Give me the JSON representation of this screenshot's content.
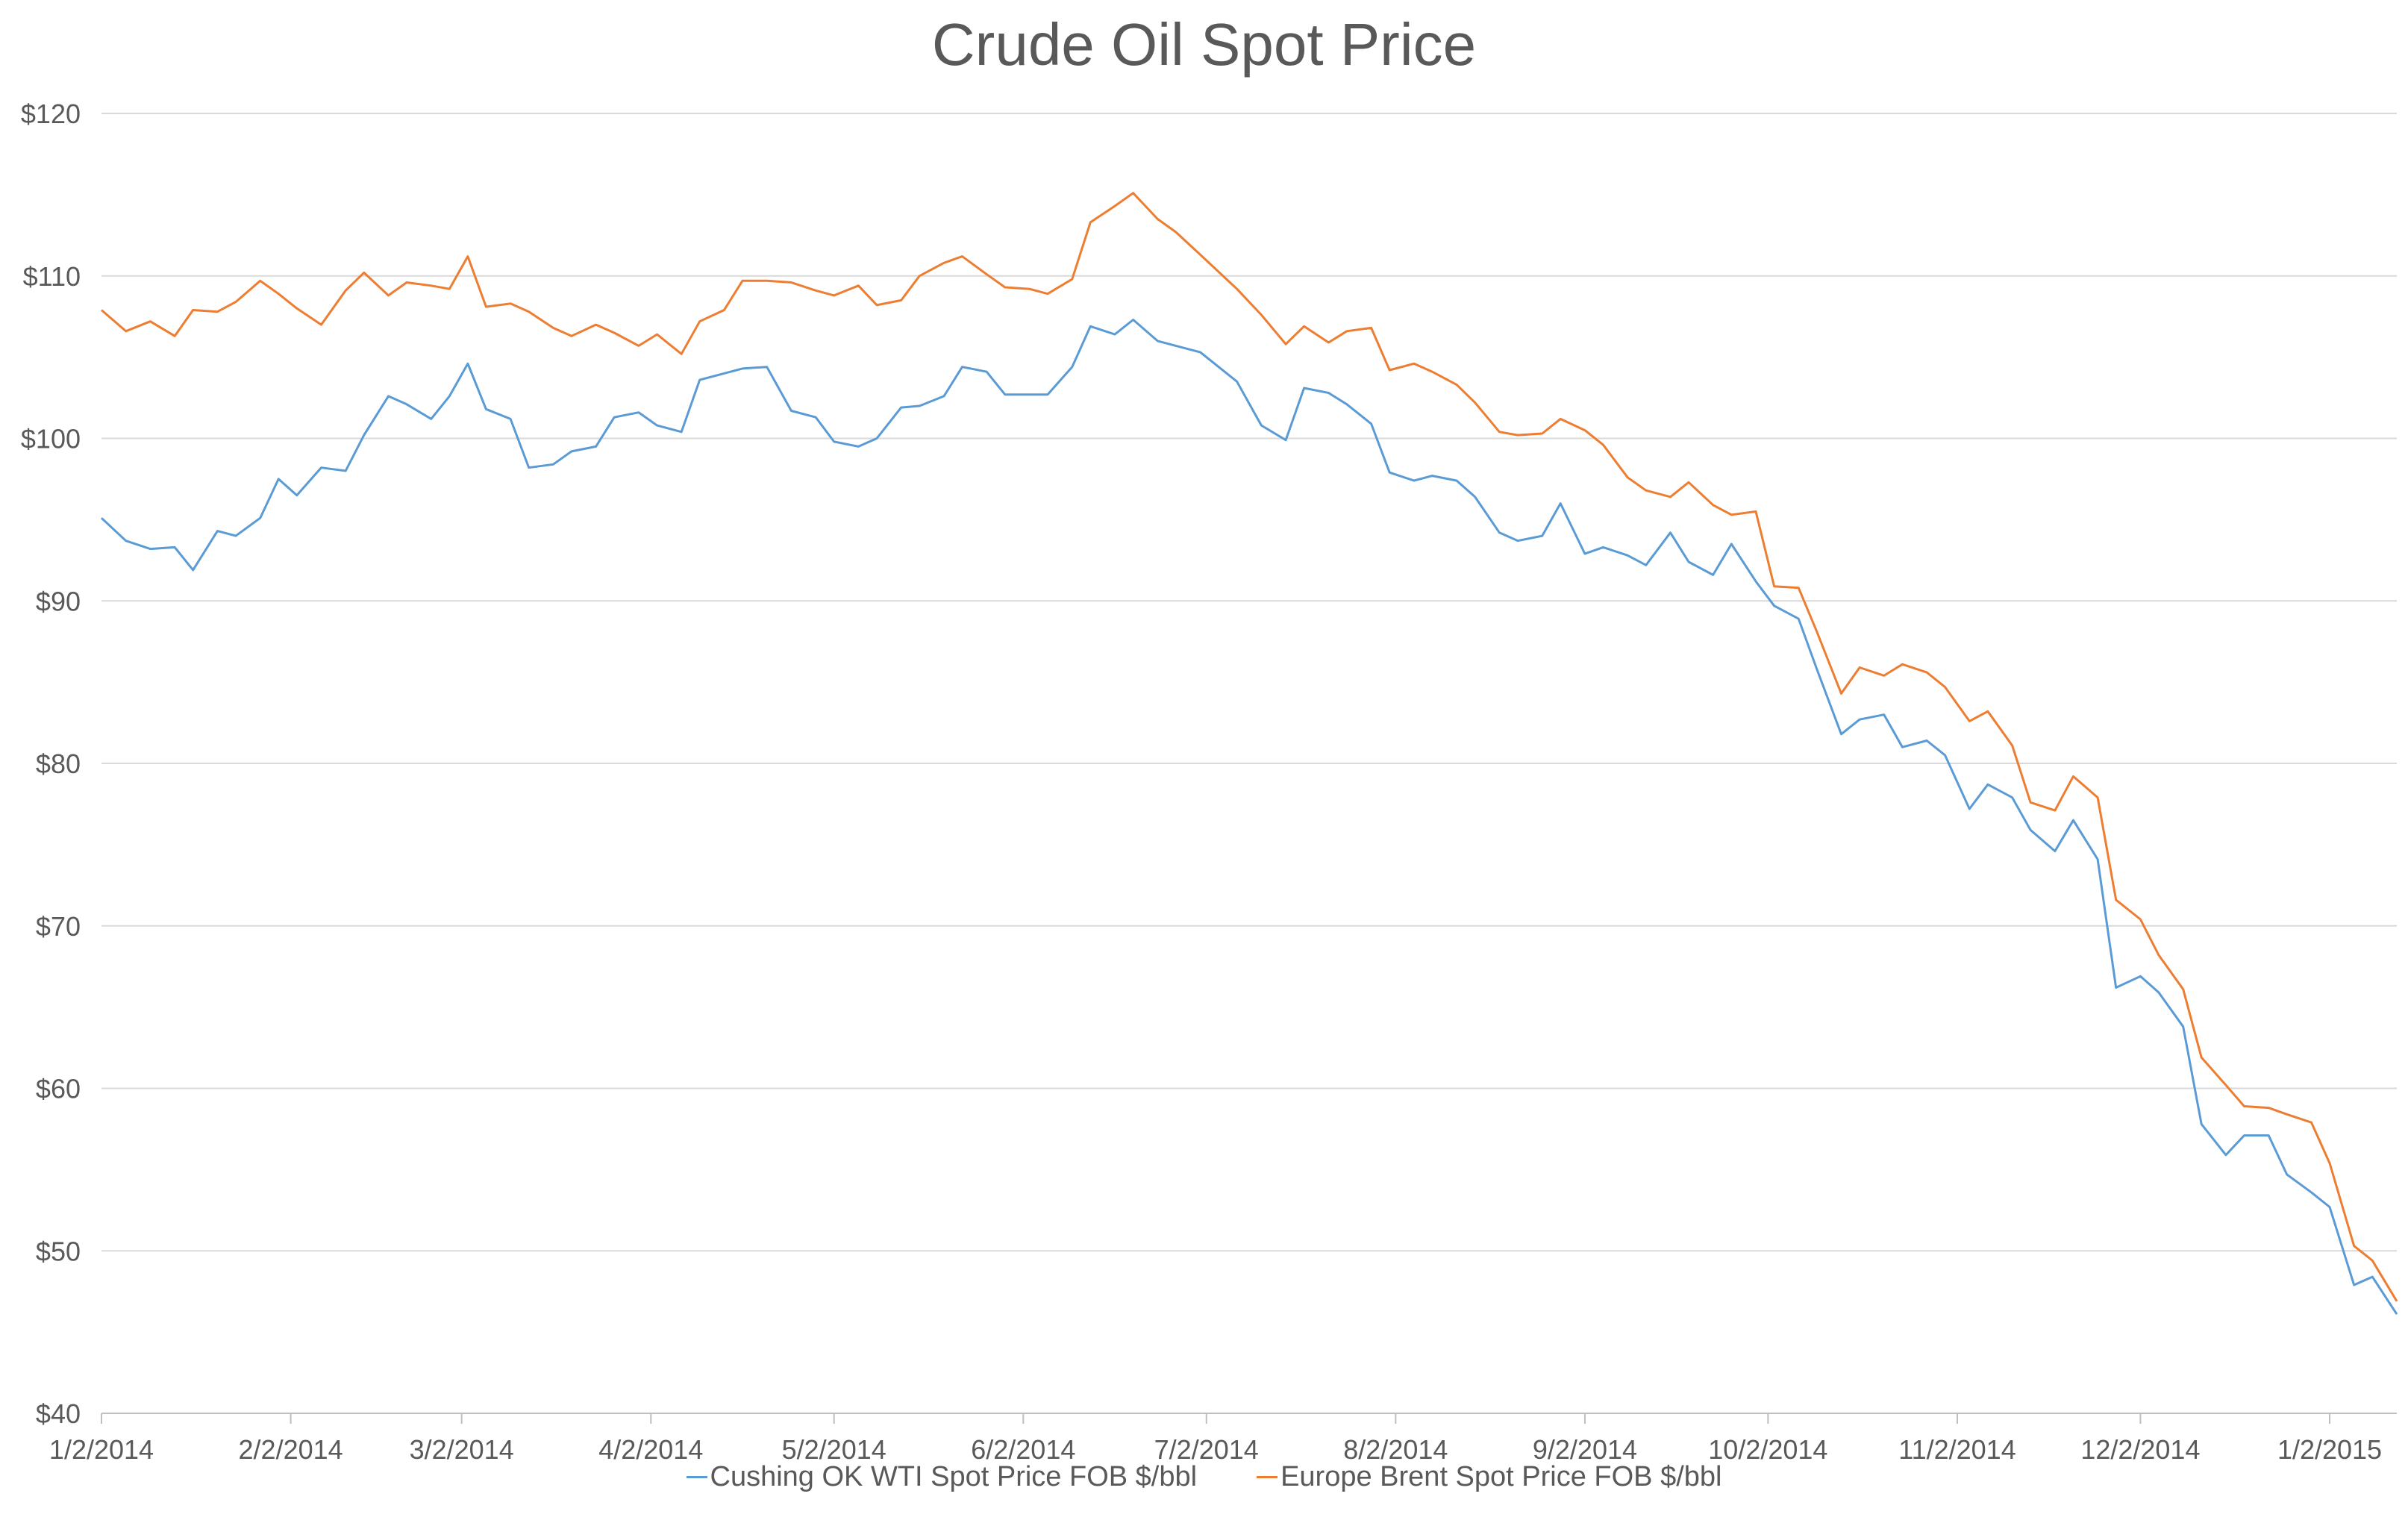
{
  "chart_data": {
    "type": "line",
    "title": "Crude Oil Spot Price",
    "xlabel": "",
    "ylabel": "",
    "ylim": [
      40,
      120
    ],
    "y_ticks": [
      "$40",
      "$50",
      "$60",
      "$70",
      "$80",
      "$90",
      "$100",
      "$110",
      "$120"
    ],
    "x_ticks": [
      "1/2/2014",
      "2/2/2014",
      "3/2/2014",
      "4/2/2014",
      "5/2/2014",
      "6/2/2014",
      "7/2/2014",
      "8/2/2014",
      "9/2/2014",
      "10/2/2014",
      "11/2/2014",
      "12/2/2014",
      "1/2/2015"
    ],
    "grid": true,
    "legend_position": "bottom",
    "series": [
      {
        "name": "Cushing OK WTI Spot Price FOB $/bbl",
        "color": "#5B9BD5",
        "points": [
          [
            "1/2/2014",
            95.1
          ],
          [
            "1/6/2014",
            93.7
          ],
          [
            "1/10/2014",
            93.2
          ],
          [
            "1/14/2014",
            93.3
          ],
          [
            "1/17/2014",
            91.9
          ],
          [
            "1/21/2014",
            94.3
          ],
          [
            "1/24/2014",
            94.0
          ],
          [
            "1/28/2014",
            95.1
          ],
          [
            "1/31/2014",
            97.5
          ],
          [
            "2/3/2014",
            96.5
          ],
          [
            "2/7/2014",
            98.2
          ],
          [
            "2/11/2014",
            98.0
          ],
          [
            "2/14/2014",
            100.2
          ],
          [
            "2/18/2014",
            102.6
          ],
          [
            "2/21/2014",
            102.1
          ],
          [
            "2/25/2014",
            101.2
          ],
          [
            "2/28/2014",
            102.6
          ],
          [
            "3/3/2014",
            104.6
          ],
          [
            "3/6/2014",
            101.8
          ],
          [
            "3/10/2014",
            101.2
          ],
          [
            "3/13/2014",
            98.2
          ],
          [
            "3/17/2014",
            98.4
          ],
          [
            "3/20/2014",
            99.2
          ],
          [
            "3/24/2014",
            99.5
          ],
          [
            "3/27/2014",
            101.3
          ],
          [
            "3/31/2014",
            101.6
          ],
          [
            "4/3/2014",
            100.8
          ],
          [
            "4/7/2014",
            100.4
          ],
          [
            "4/10/2014",
            103.6
          ],
          [
            "4/14/2014",
            104.0
          ],
          [
            "4/17/2014",
            104.3
          ],
          [
            "4/21/2014",
            104.4
          ],
          [
            "4/25/2014",
            101.7
          ],
          [
            "4/29/2014",
            101.3
          ],
          [
            "5/2/2014",
            99.8
          ],
          [
            "5/6/2014",
            99.5
          ],
          [
            "5/9/2014",
            100.0
          ],
          [
            "5/13/2014",
            101.9
          ],
          [
            "5/16/2014",
            102.0
          ],
          [
            "5/20/2014",
            102.6
          ],
          [
            "5/23/2014",
            104.4
          ],
          [
            "5/27/2014",
            104.1
          ],
          [
            "5/30/2014",
            102.7
          ],
          [
            "6/3/2014",
            102.7
          ],
          [
            "6/6/2014",
            102.7
          ],
          [
            "6/10/2014",
            104.4
          ],
          [
            "6/13/2014",
            106.9
          ],
          [
            "6/17/2014",
            106.4
          ],
          [
            "6/20/2014",
            107.3
          ],
          [
            "6/24/2014",
            106.0
          ],
          [
            "6/27/2014",
            105.7
          ],
          [
            "7/1/2014",
            105.3
          ],
          [
            "7/7/2014",
            103.5
          ],
          [
            "7/11/2014",
            100.8
          ],
          [
            "7/15/2014",
            99.9
          ],
          [
            "7/18/2014",
            103.1
          ],
          [
            "7/22/2014",
            102.8
          ],
          [
            "7/25/2014",
            102.1
          ],
          [
            "7/29/2014",
            100.9
          ],
          [
            "8/1/2014",
            97.9
          ],
          [
            "8/5/2014",
            97.4
          ],
          [
            "8/8/2014",
            97.7
          ],
          [
            "8/12/2014",
            97.4
          ],
          [
            "8/15/2014",
            96.4
          ],
          [
            "8/19/2014",
            94.2
          ],
          [
            "8/22/2014",
            93.7
          ],
          [
            "8/26/2014",
            94.0
          ],
          [
            "8/29/2014",
            96.0
          ],
          [
            "9/2/2014",
            92.9
          ],
          [
            "9/5/2014",
            93.3
          ],
          [
            "9/9/2014",
            92.8
          ],
          [
            "9/12/2014",
            92.2
          ],
          [
            "9/16/2014",
            94.2
          ],
          [
            "9/19/2014",
            92.4
          ],
          [
            "9/23/2014",
            91.6
          ],
          [
            "9/26/2014",
            93.5
          ],
          [
            "9/30/2014",
            91.2
          ],
          [
            "10/3/2014",
            89.7
          ],
          [
            "10/7/2014",
            88.9
          ],
          [
            "10/10/2014",
            85.8
          ],
          [
            "10/14/2014",
            81.8
          ],
          [
            "10/17/2014",
            82.7
          ],
          [
            "10/21/2014",
            83.0
          ],
          [
            "10/24/2014",
            81.0
          ],
          [
            "10/28/2014",
            81.4
          ],
          [
            "10/31/2014",
            80.5
          ],
          [
            "11/4/2014",
            77.2
          ],
          [
            "11/7/2014",
            78.7
          ],
          [
            "11/11/2014",
            77.9
          ],
          [
            "11/14/2014",
            75.9
          ],
          [
            "11/18/2014",
            74.6
          ],
          [
            "11/21/2014",
            76.5
          ],
          [
            "11/25/2014",
            74.1
          ],
          [
            "11/28/2014",
            66.2
          ],
          [
            "12/2/2014",
            66.9
          ],
          [
            "12/5/2014",
            65.9
          ],
          [
            "12/9/2014",
            63.8
          ],
          [
            "12/12/2014",
            57.8
          ],
          [
            "12/16/2014",
            55.9
          ],
          [
            "12/19/2014",
            57.1
          ],
          [
            "12/23/2014",
            57.1
          ],
          [
            "12/26/2014",
            54.7
          ],
          [
            "12/30/2014",
            53.6
          ],
          [
            "1/2/2015",
            52.7
          ],
          [
            "1/6/2015",
            47.9
          ],
          [
            "1/9/2015",
            48.4
          ],
          [
            "1/13/2015",
            46.1
          ]
        ]
      },
      {
        "name": "Europe Brent Spot Price FOB $/bbl",
        "color": "#ED7D31",
        "points": [
          [
            "1/2/2014",
            107.9
          ],
          [
            "1/6/2014",
            106.6
          ],
          [
            "1/10/2014",
            107.2
          ],
          [
            "1/14/2014",
            106.3
          ],
          [
            "1/17/2014",
            107.9
          ],
          [
            "1/21/2014",
            107.8
          ],
          [
            "1/24/2014",
            108.4
          ],
          [
            "1/28/2014",
            109.7
          ],
          [
            "1/31/2014",
            108.9
          ],
          [
            "2/3/2014",
            108.0
          ],
          [
            "2/7/2014",
            107.0
          ],
          [
            "2/11/2014",
            109.1
          ],
          [
            "2/14/2014",
            110.2
          ],
          [
            "2/18/2014",
            108.8
          ],
          [
            "2/21/2014",
            109.6
          ],
          [
            "2/25/2014",
            109.4
          ],
          [
            "2/28/2014",
            109.2
          ],
          [
            "3/3/2014",
            111.2
          ],
          [
            "3/6/2014",
            108.1
          ],
          [
            "3/10/2014",
            108.3
          ],
          [
            "3/13/2014",
            107.8
          ],
          [
            "3/17/2014",
            106.8
          ],
          [
            "3/20/2014",
            106.3
          ],
          [
            "3/24/2014",
            107.0
          ],
          [
            "3/27/2014",
            106.5
          ],
          [
            "3/31/2014",
            105.7
          ],
          [
            "4/3/2014",
            106.4
          ],
          [
            "4/7/2014",
            105.2
          ],
          [
            "4/10/2014",
            107.2
          ],
          [
            "4/14/2014",
            107.9
          ],
          [
            "4/17/2014",
            109.7
          ],
          [
            "4/21/2014",
            109.7
          ],
          [
            "4/25/2014",
            109.6
          ],
          [
            "4/29/2014",
            109.1
          ],
          [
            "5/2/2014",
            108.8
          ],
          [
            "5/6/2014",
            109.4
          ],
          [
            "5/9/2014",
            108.2
          ],
          [
            "5/13/2014",
            108.5
          ],
          [
            "5/16/2014",
            110.0
          ],
          [
            "5/20/2014",
            110.8
          ],
          [
            "5/23/2014",
            111.2
          ],
          [
            "5/27/2014",
            110.1
          ],
          [
            "5/30/2014",
            109.3
          ],
          [
            "6/3/2014",
            109.2
          ],
          [
            "6/6/2014",
            108.9
          ],
          [
            "6/10/2014",
            109.8
          ],
          [
            "6/13/2014",
            113.3
          ],
          [
            "6/17/2014",
            114.3
          ],
          [
            "6/20/2014",
            115.1
          ],
          [
            "6/24/2014",
            113.5
          ],
          [
            "6/27/2014",
            112.7
          ],
          [
            "7/1/2014",
            111.3
          ],
          [
            "7/7/2014",
            109.2
          ],
          [
            "7/11/2014",
            107.6
          ],
          [
            "7/15/2014",
            105.8
          ],
          [
            "7/18/2014",
            106.9
          ],
          [
            "7/22/2014",
            105.9
          ],
          [
            "7/25/2014",
            106.6
          ],
          [
            "7/29/2014",
            106.8
          ],
          [
            "8/1/2014",
            104.2
          ],
          [
            "8/5/2014",
            104.6
          ],
          [
            "8/8/2014",
            104.1
          ],
          [
            "8/12/2014",
            103.3
          ],
          [
            "8/15/2014",
            102.2
          ],
          [
            "8/19/2014",
            100.4
          ],
          [
            "8/22/2014",
            100.2
          ],
          [
            "8/26/2014",
            100.3
          ],
          [
            "8/29/2014",
            101.2
          ],
          [
            "9/2/2014",
            100.5
          ],
          [
            "9/5/2014",
            99.6
          ],
          [
            "9/9/2014",
            97.6
          ],
          [
            "9/12/2014",
            96.8
          ],
          [
            "9/16/2014",
            96.4
          ],
          [
            "9/19/2014",
            97.3
          ],
          [
            "9/23/2014",
            95.9
          ],
          [
            "9/26/2014",
            95.3
          ],
          [
            "9/30/2014",
            95.5
          ],
          [
            "10/3/2014",
            90.9
          ],
          [
            "10/7/2014",
            90.8
          ],
          [
            "10/10/2014",
            88.1
          ],
          [
            "10/14/2014",
            84.3
          ],
          [
            "10/17/2014",
            85.9
          ],
          [
            "10/21/2014",
            85.4
          ],
          [
            "10/24/2014",
            86.1
          ],
          [
            "10/28/2014",
            85.6
          ],
          [
            "10/31/2014",
            84.7
          ],
          [
            "11/4/2014",
            82.6
          ],
          [
            "11/7/2014",
            83.2
          ],
          [
            "11/11/2014",
            81.1
          ],
          [
            "11/14/2014",
            77.6
          ],
          [
            "11/18/2014",
            77.1
          ],
          [
            "11/21/2014",
            79.2
          ],
          [
            "11/25/2014",
            77.9
          ],
          [
            "11/28/2014",
            71.6
          ],
          [
            "12/2/2014",
            70.4
          ],
          [
            "12/5/2014",
            68.2
          ],
          [
            "12/9/2014",
            66.1
          ],
          [
            "12/12/2014",
            61.9
          ],
          [
            "12/16/2014",
            60.2
          ],
          [
            "12/19/2014",
            58.9
          ],
          [
            "12/23/2014",
            58.8
          ],
          [
            "12/26/2014",
            58.4
          ],
          [
            "12/30/2014",
            57.9
          ],
          [
            "1/2/2015",
            55.4
          ],
          [
            "1/6/2015",
            50.3
          ],
          [
            "1/9/2015",
            49.4
          ],
          [
            "1/13/2015",
            46.9
          ]
        ]
      }
    ]
  }
}
